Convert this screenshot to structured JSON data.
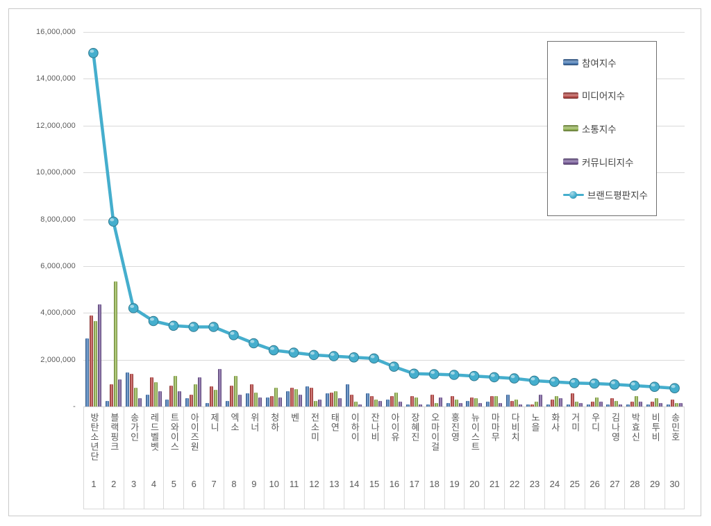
{
  "page": {
    "background": "#ffffff",
    "border_color": "#c9c9c9"
  },
  "chart": {
    "y_axis": {
      "tick_labels": [
        "16,000,000",
        "14,000,000",
        "12,000,000",
        "10,000,000",
        "8,000,000",
        "6,000,000",
        "4,000,000",
        "2,000,000",
        "-"
      ],
      "text_color": "#595959",
      "gridline_color": "#d9d9d9"
    },
    "legend": {
      "position": "top-right",
      "border_color": "#6e6e6e",
      "entries": [
        {
          "label": "참여지수",
          "type": "bar",
          "color": "#4F81BD"
        },
        {
          "label": "미디어지수",
          "type": "bar",
          "color": "#C0504D"
        },
        {
          "label": "소통지수",
          "type": "bar",
          "color": "#9BBB59"
        },
        {
          "label": "커뮤니티지수",
          "type": "bar",
          "color": "#8064A2"
        },
        {
          "label": "브랜드평판지수",
          "type": "line",
          "color": "#45AECD"
        }
      ]
    }
  },
  "chart_data": {
    "type": "bar",
    "title": "",
    "xlabel": "",
    "ylabel": "",
    "ylim": [
      0,
      16000000
    ],
    "grid": true,
    "legend_position": "top-right",
    "categories": [
      "방탄소년단",
      "블랙핑크",
      "송가인",
      "레드벨벳",
      "트와이스",
      "아이즈원",
      "제니",
      "엑소",
      "위너",
      "청하",
      "벤",
      "전소미",
      "태연",
      "이하이",
      "잔나비",
      "아이유",
      "장혜진",
      "오마이걸",
      "홍진영",
      "뉴이스트",
      "마마무",
      "다비치",
      "노을",
      "화사",
      "거미",
      "우디",
      "김나영",
      "박효신",
      "비투비",
      "송민호"
    ],
    "ranks": [
      "1",
      "2",
      "3",
      "4",
      "5",
      "6",
      "7",
      "8",
      "9",
      "10",
      "11",
      "12",
      "13",
      "14",
      "15",
      "16",
      "17",
      "18",
      "19",
      "20",
      "21",
      "22",
      "23",
      "24",
      "25",
      "26",
      "27",
      "28",
      "29",
      "30"
    ],
    "series": [
      {
        "name": "참여지수",
        "type": "bar",
        "color": "#4F81BD",
        "values": [
          2900000,
          250000,
          1450000,
          500000,
          300000,
          350000,
          150000,
          250000,
          550000,
          400000,
          650000,
          850000,
          550000,
          950000,
          550000,
          300000,
          100000,
          100000,
          150000,
          250000,
          200000,
          500000,
          100000,
          100000,
          100000,
          100000,
          100000,
          100000,
          100000,
          100000
        ]
      },
      {
        "name": "미디어지수",
        "type": "bar",
        "color": "#C0504D",
        "values": [
          3900000,
          950000,
          1400000,
          1250000,
          900000,
          500000,
          850000,
          900000,
          950000,
          450000,
          800000,
          800000,
          600000,
          500000,
          450000,
          450000,
          450000,
          500000,
          450000,
          400000,
          450000,
          250000,
          100000,
          300000,
          550000,
          200000,
          350000,
          200000,
          200000,
          300000
        ]
      },
      {
        "name": "소통지수",
        "type": "bar",
        "color": "#9BBB59",
        "values": [
          3650000,
          5350000,
          800000,
          1050000,
          1300000,
          950000,
          700000,
          1300000,
          600000,
          800000,
          750000,
          250000,
          650000,
          200000,
          300000,
          600000,
          400000,
          150000,
          300000,
          350000,
          450000,
          300000,
          200000,
          450000,
          200000,
          400000,
          250000,
          450000,
          350000,
          150000
        ]
      },
      {
        "name": "커뮤니티지수",
        "type": "bar",
        "color": "#8064A2",
        "values": [
          4350000,
          1150000,
          350000,
          650000,
          650000,
          1250000,
          1600000,
          500000,
          400000,
          400000,
          500000,
          300000,
          350000,
          100000,
          250000,
          200000,
          100000,
          400000,
          150000,
          150000,
          150000,
          100000,
          500000,
          350000,
          150000,
          200000,
          100000,
          200000,
          150000,
          150000
        ]
      },
      {
        "name": "브랜드평판지수",
        "type": "line",
        "color": "#45AECD",
        "values": [
          15100000,
          7900000,
          4200000,
          3650000,
          3450000,
          3400000,
          3400000,
          3050000,
          2700000,
          2400000,
          2300000,
          2200000,
          2150000,
          2100000,
          2050000,
          1700000,
          1400000,
          1380000,
          1350000,
          1300000,
          1250000,
          1200000,
          1100000,
          1050000,
          1000000,
          980000,
          940000,
          890000,
          840000,
          780000
        ]
      }
    ]
  }
}
